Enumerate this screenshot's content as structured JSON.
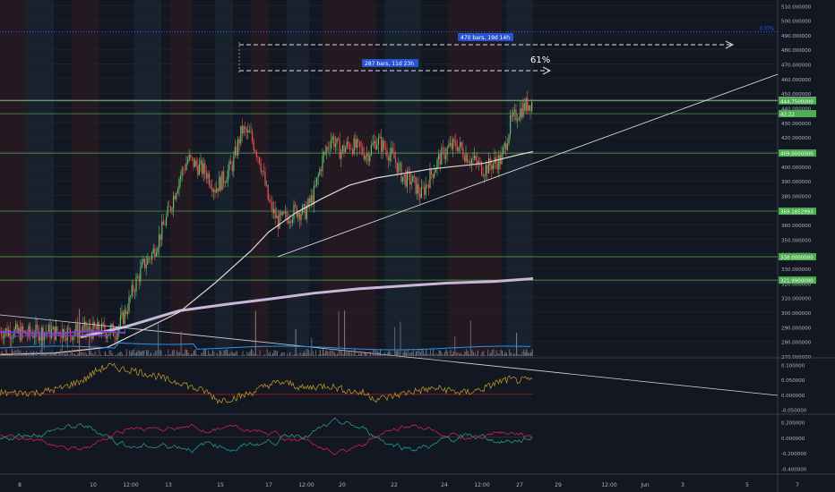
{
  "chart_data": [
    {
      "type": "candlestick",
      "panel": "price",
      "price_axis": {
        "ticks": [
          "510.000000",
          "500.000000",
          "490.000000",
          "480.000000",
          "470.000000",
          "460.000000",
          "450.000000",
          "440.000000",
          "430.000000",
          "420.000000",
          "410.000000",
          "400.000000",
          "390.000000",
          "380.000000",
          "370.000000",
          "360.000000",
          "350.000000",
          "340.000000",
          "330.000000",
          "320.000000",
          "310.000000",
          "300.000000",
          "290.000000",
          "280.000000",
          "270.000000"
        ],
        "ylim": [
          270,
          512
        ]
      },
      "time_axis": {
        "ticks": [
          "8",
          "10",
          "12:00",
          "13",
          "15",
          "17",
          "12:00",
          "20",
          "22",
          "24",
          "12:00",
          "27",
          "29",
          "12:00",
          "Jun",
          "3",
          "5",
          "7"
        ]
      },
      "horizontal_levels": [
        {
          "value": 445.2,
          "label": "445.2864217",
          "color": "#9e9e9e"
        },
        {
          "value": 444.75,
          "label": "444.7500000",
          "color": "#4caf50"
        },
        {
          "value": 436.0,
          "label": "42:22",
          "color": "#4caf50"
        },
        {
          "value": 409.0,
          "label": "409.0000000",
          "color": "#4caf50"
        },
        {
          "value": 369.2,
          "label": "369.1852993",
          "color": "#4caf50"
        },
        {
          "value": 338.0,
          "label": "338.0000000",
          "color": "#4caf50"
        },
        {
          "value": 322.0,
          "label": "321.9900000",
          "color": "#4caf50"
        }
      ],
      "top_marker": {
        "value": 492,
        "label": "0.37%"
      },
      "measurements": [
        {
          "label": "470 bars, 19d 14h"
        },
        {
          "label": "287 bars, 11d 23h"
        }
      ],
      "annotation": "61%",
      "series": [
        {
          "kind": "ohlc",
          "color_up": "#66bb6a",
          "color_down": "#ef5350"
        },
        {
          "kind": "moving_average",
          "color": "#e8d5d5"
        },
        {
          "kind": "moving_average",
          "color": "#c9b6d8"
        }
      ],
      "close_path": [
        [
          0,
          287
        ],
        [
          10,
          287
        ],
        [
          20,
          286
        ],
        [
          30,
          285
        ],
        [
          40,
          286
        ],
        [
          50,
          287
        ],
        [
          60,
          286
        ],
        [
          70,
          287
        ],
        [
          80,
          286
        ],
        [
          90,
          288
        ],
        [
          100,
          287
        ],
        [
          110,
          288
        ],
        [
          120,
          287
        ],
        [
          130,
          287
        ],
        [
          140,
          300
        ],
        [
          150,
          318
        ],
        [
          160,
          332
        ],
        [
          170,
          340
        ],
        [
          180,
          355
        ],
        [
          190,
          372
        ],
        [
          200,
          392
        ],
        [
          210,
          405
        ],
        [
          220,
          400
        ],
        [
          230,
          396
        ],
        [
          240,
          385
        ],
        [
          250,
          392
        ],
        [
          260,
          402
        ],
        [
          270,
          425
        ],
        [
          280,
          420
        ],
        [
          290,
          405
        ],
        [
          300,
          375
        ],
        [
          310,
          362
        ],
        [
          320,
          365
        ],
        [
          330,
          370
        ],
        [
          340,
          368
        ],
        [
          350,
          380
        ],
        [
          360,
          405
        ],
        [
          370,
          420
        ],
        [
          380,
          410
        ],
        [
          390,
          415
        ],
        [
          400,
          412
        ],
        [
          410,
          408
        ],
        [
          420,
          418
        ],
        [
          430,
          412
        ],
        [
          440,
          405
        ],
        [
          450,
          392
        ],
        [
          460,
          390
        ],
        [
          470,
          380
        ],
        [
          480,
          393
        ],
        [
          490,
          405
        ],
        [
          500,
          412
        ],
        [
          510,
          415
        ],
        [
          520,
          408
        ],
        [
          530,
          403
        ],
        [
          540,
          398
        ],
        [
          550,
          402
        ],
        [
          560,
          405
        ],
        [
          570,
          430
        ],
        [
          580,
          438
        ],
        [
          590,
          443
        ],
        [
          595,
          444
        ]
      ],
      "ma_fast_path": [
        [
          0,
          271
        ],
        [
          60,
          272
        ],
        [
          120,
          276
        ],
        [
          160,
          288
        ],
        [
          200,
          300
        ],
        [
          240,
          320
        ],
        [
          280,
          342
        ],
        [
          300,
          355
        ],
        [
          330,
          368
        ],
        [
          360,
          378
        ],
        [
          390,
          387
        ],
        [
          420,
          392
        ],
        [
          450,
          395
        ],
        [
          480,
          398
        ],
        [
          510,
          400
        ],
        [
          540,
          402
        ],
        [
          560,
          405
        ],
        [
          580,
          408
        ],
        [
          595,
          410
        ]
      ],
      "ma_slow_path": [
        [
          90,
          283
        ],
        [
          140,
          290
        ],
        [
          200,
          301
        ],
        [
          260,
          306
        ],
        [
          300,
          309
        ],
        [
          350,
          313
        ],
        [
          400,
          316
        ],
        [
          450,
          318
        ],
        [
          500,
          320
        ],
        [
          550,
          321
        ],
        [
          595,
          323
        ]
      ]
    },
    {
      "type": "line",
      "panel": "oscillator_1",
      "ticks": [
        "0.100000",
        "0.050000",
        "0.000000",
        "-0.050000"
      ],
      "ylim": [
        -0.06,
        0.11
      ],
      "series": [
        {
          "color": "#c8a028"
        }
      ],
      "values_sample": [
        0.005,
        0.004,
        0.006,
        0.005,
        0.012,
        0.02,
        0.035,
        0.05,
        0.08,
        0.095,
        0.085,
        0.08,
        0.07,
        0.06,
        0.045,
        0.04,
        0.02,
        0.01,
        -0.02,
        -0.015,
        -0.005,
        0.01,
        0.03,
        0.04,
        0.035,
        0.02,
        0.025,
        0.03,
        0.02,
        0.01,
        0.005,
        -0.015,
        -0.01,
        0.0,
        0.01,
        0.015,
        0.02,
        0.015,
        0.005,
        0.01,
        0.02,
        0.04,
        0.05,
        0.045,
        0.05
      ]
    },
    {
      "type": "line",
      "panel": "oscillator_2",
      "ticks": [
        "0.200000",
        "0.000000",
        "-0.200000",
        "-0.400000"
      ],
      "ylim": [
        -0.45,
        0.25
      ],
      "series": [
        {
          "color": "#26a69a"
        },
        {
          "color": "#e91e63"
        }
      ]
    }
  ]
}
